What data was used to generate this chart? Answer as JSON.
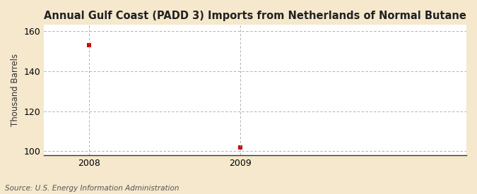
{
  "title": "Annual Gulf Coast (PADD 3) Imports from Netherlands of Normal Butane",
  "ylabel": "Thousand Barrels",
  "source": "Source: U.S. Energy Information Administration",
  "x": [
    2008,
    2009
  ],
  "y": [
    153,
    102
  ],
  "xlim": [
    2007.7,
    2010.5
  ],
  "ylim": [
    98,
    163
  ],
  "yticks": [
    100,
    120,
    140,
    160
  ],
  "xticks": [
    2008,
    2009
  ],
  "background_color": "#f5e8cc",
  "plot_bg_color": "#ffffff",
  "marker_color": "#cc0000",
  "marker_size": 4,
  "grid_color": "#999999",
  "title_fontsize": 10.5,
  "label_fontsize": 8.5,
  "tick_fontsize": 9,
  "source_fontsize": 7.5
}
